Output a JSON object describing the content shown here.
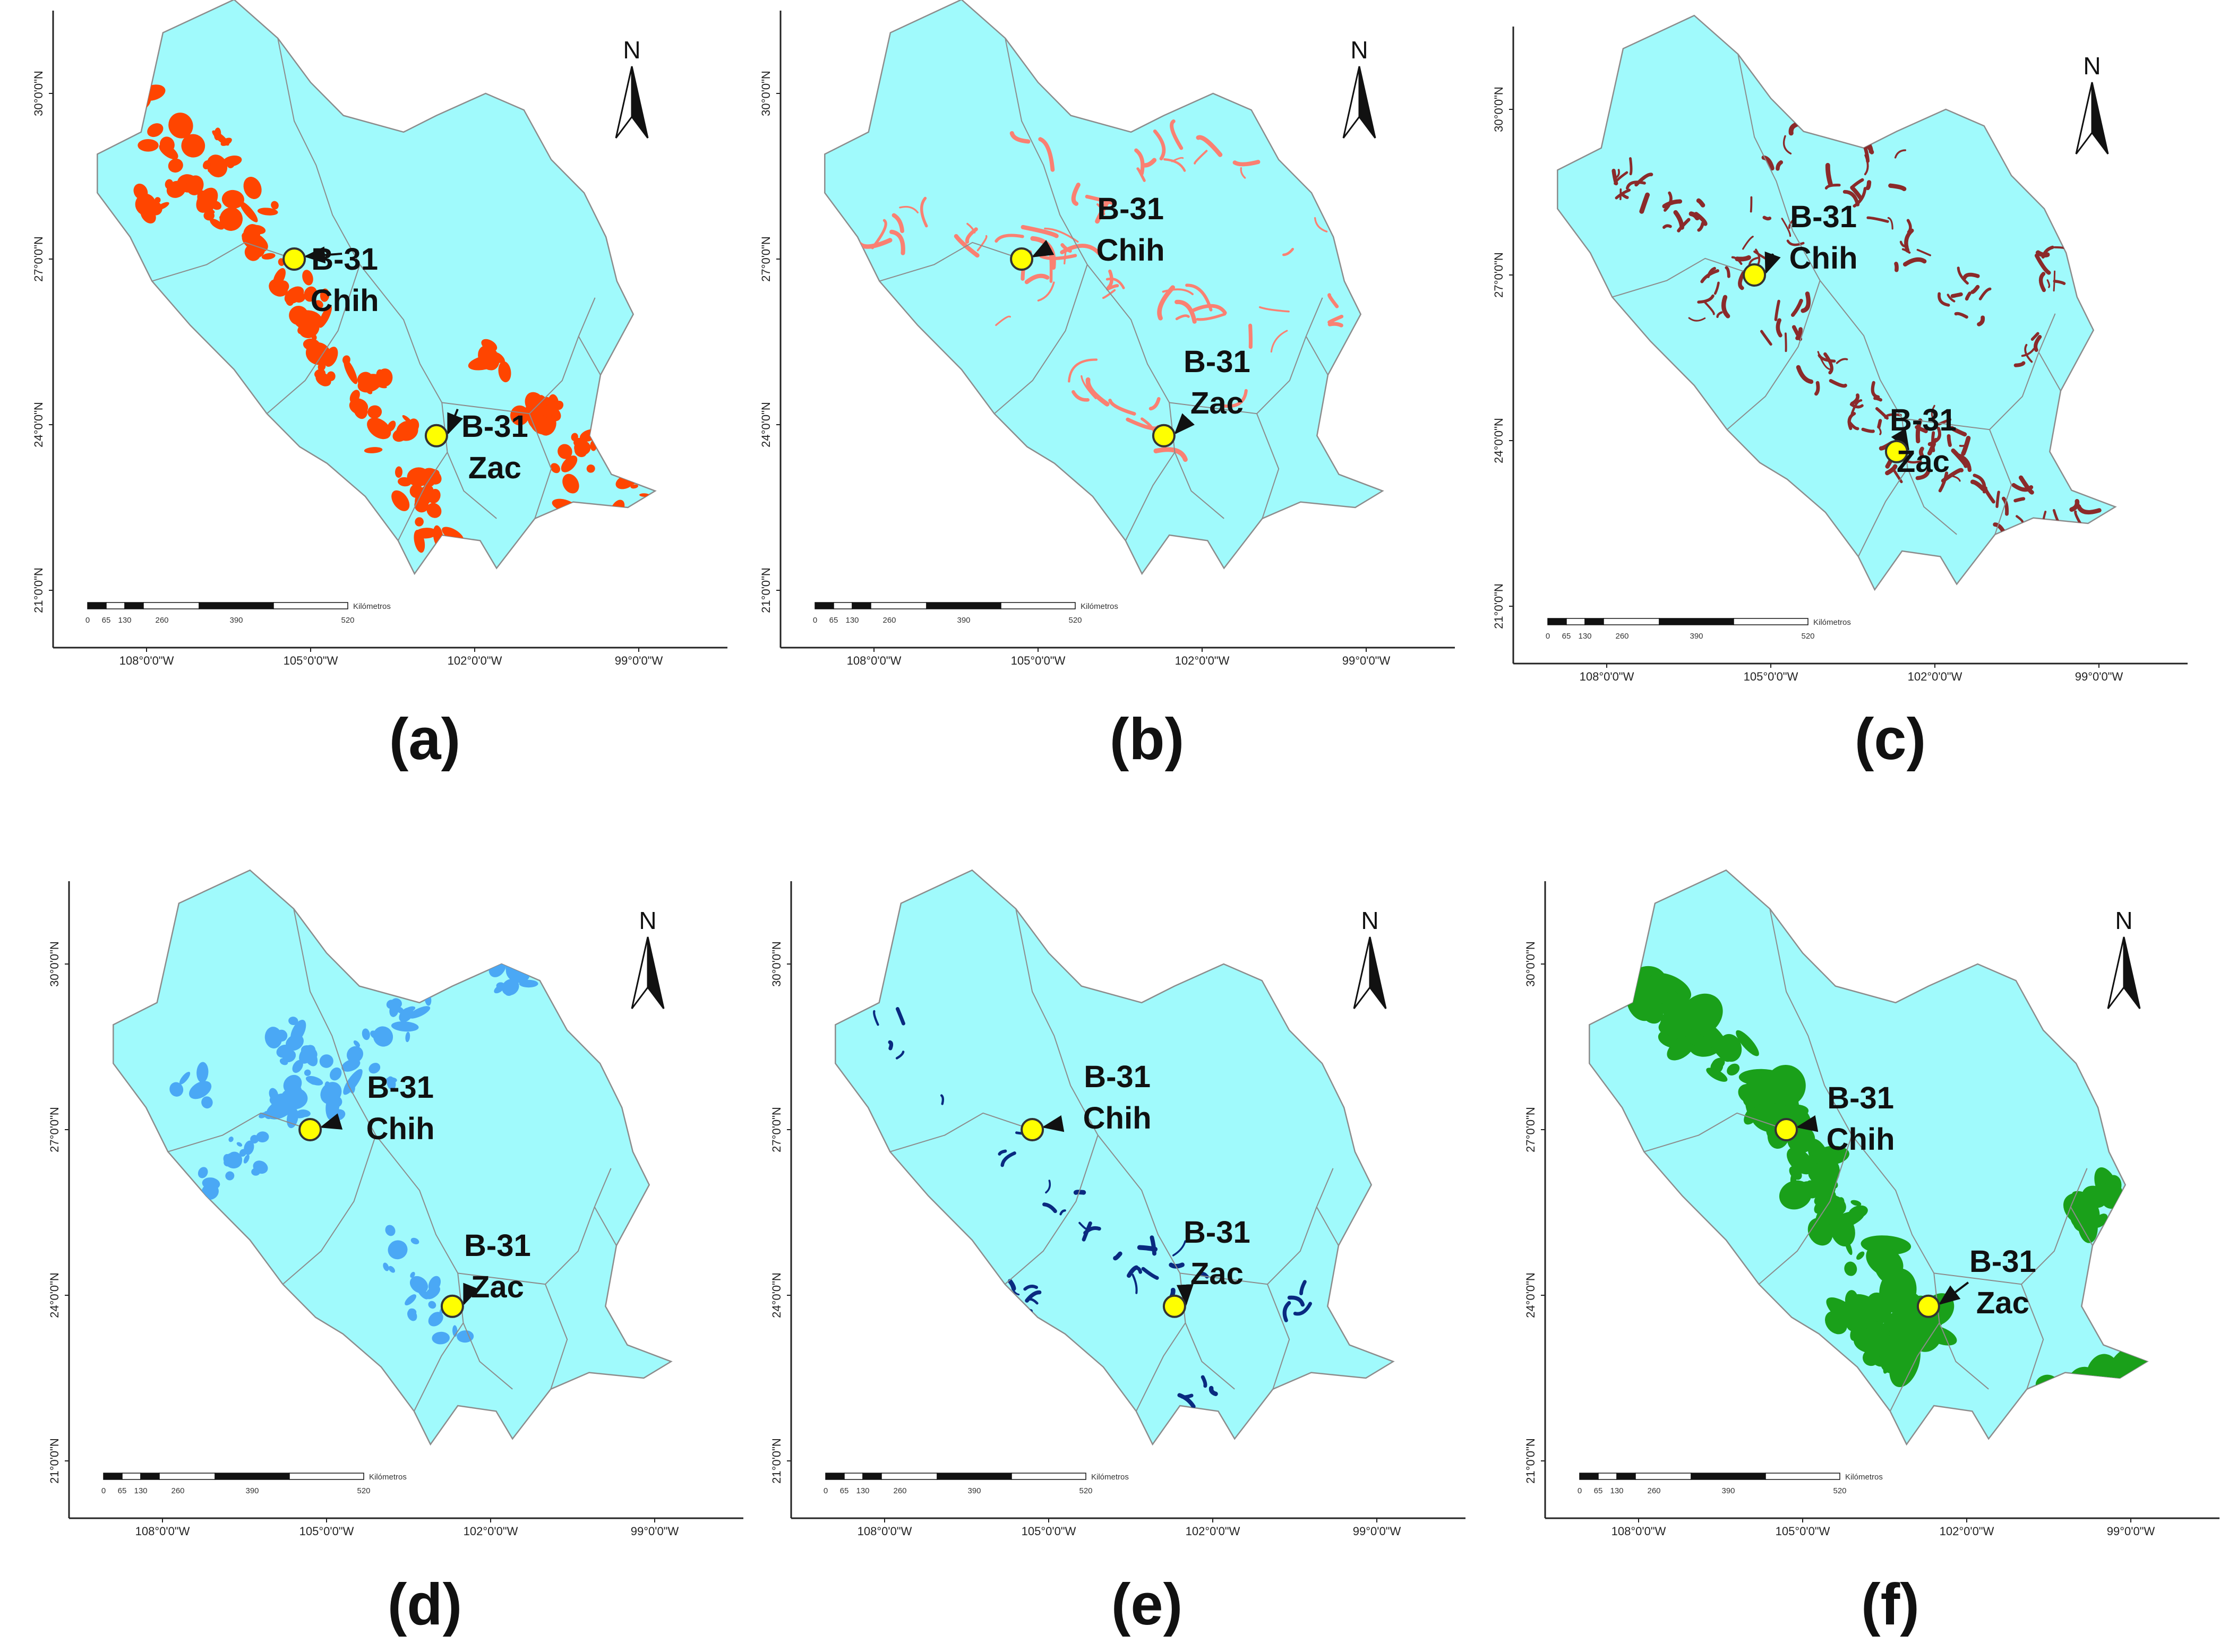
{
  "figure": {
    "background": "#ffffff",
    "land_color": "#a0fafc",
    "border_color": "#8c8c8c",
    "frame_color": "#222222",
    "marker_fill": "#ffff00",
    "marker_stroke": "#333333",
    "north_label": "N",
    "scale_unit": "Kilómetros",
    "scale_ticks": [
      "0",
      "65",
      "130",
      "260",
      "390",
      "520"
    ],
    "lon_ticks": [
      "108°0'0\"W",
      "105°0'0\"W",
      "102°0'0\"W",
      "99°0'0\"W"
    ],
    "lat_ticks": [
      "30°0'0\"N",
      "27°0'0\"N",
      "24°0'0\"N",
      "21°0'0\"N"
    ]
  },
  "panels": [
    {
      "label": "(a)",
      "fill": "#ff4500",
      "pattern": "patches-nw",
      "sites": [
        {
          "code": "B-31",
          "name": "Chih",
          "lon": -105.3,
          "lat": 27.0
        },
        {
          "code": "B-31",
          "name": "Zac",
          "lon": -102.7,
          "lat": 23.8
        }
      ]
    },
    {
      "label": "(b)",
      "fill": "#fa8072",
      "pattern": "streams",
      "sites": [
        {
          "code": "B-31",
          "name": "Chih",
          "lon": -105.3,
          "lat": 27.0
        },
        {
          "code": "B-31",
          "name": "Zac",
          "lon": -102.7,
          "lat": 23.8
        }
      ]
    },
    {
      "label": "(c)",
      "fill": "#8b2a2a",
      "pattern": "dendritic",
      "sites": [
        {
          "code": "B-31",
          "name": "Chih",
          "lon": -105.3,
          "lat": 27.0
        },
        {
          "code": "B-31",
          "name": "Zac",
          "lon": -102.7,
          "lat": 23.8
        }
      ]
    },
    {
      "label": "(d)",
      "fill": "#4aa8f5",
      "pattern": "basin",
      "sites": [
        {
          "code": "B-31",
          "name": "Chih",
          "lon": -105.3,
          "lat": 27.0
        },
        {
          "code": "B-31",
          "name": "Zac",
          "lon": -102.7,
          "lat": 23.8
        }
      ]
    },
    {
      "label": "(e)",
      "fill": "#0a2a80",
      "pattern": "channel",
      "sites": [
        {
          "code": "B-31",
          "name": "Chih",
          "lon": -105.3,
          "lat": 27.0
        },
        {
          "code": "B-31",
          "name": "Zac",
          "lon": -102.7,
          "lat": 23.8
        }
      ]
    },
    {
      "label": "(f)",
      "fill": "#1aa01a",
      "pattern": "band",
      "sites": [
        {
          "code": "B-31",
          "name": "Chih",
          "lon": -105.3,
          "lat": 27.0
        },
        {
          "code": "B-31",
          "name": "Zac",
          "lon": -102.7,
          "lat": 23.8
        }
      ]
    }
  ]
}
